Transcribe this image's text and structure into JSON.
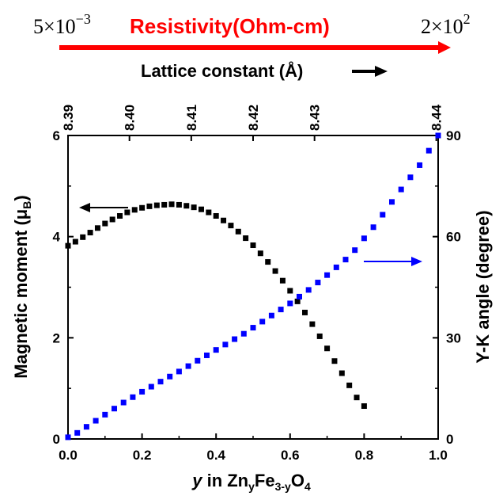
{
  "header": {
    "resistivity_label": "Resistivity(Ohm-cm)",
    "resistivity_min_mantissa": "5",
    "resistivity_min_times": "×",
    "resistivity_min_base": "10",
    "resistivity_min_exp": "−3",
    "resistivity_max_mantissa": "2",
    "resistivity_max_times": "×",
    "resistivity_max_base": "10",
    "resistivity_max_exp": "2",
    "resistivity_arrow_color": "#ff0000"
  },
  "chart_data": {
    "type": "scatter",
    "xlim": [
      0.0,
      1.0
    ],
    "x_ticks": [
      "0.0",
      "0.2",
      "0.4",
      "0.6",
      "0.8",
      "1.0"
    ],
    "x_tick_values": [
      0.0,
      0.2,
      0.4,
      0.6,
      0.8,
      1.0
    ],
    "xlabel_italic": "y",
    "xlabel_rest": " in Zn",
    "xlabel_sub1": "y",
    "xlabel_mid": "Fe",
    "xlabel_sub2": "3-y",
    "xlabel_end": "O",
    "xlabel_sub3": "4",
    "y_left_lim": [
      0,
      6
    ],
    "y_left_ticks": [
      "0",
      "2",
      "4",
      "6"
    ],
    "y_left_tick_values": [
      0,
      2,
      4,
      6
    ],
    "ylabel_left_main": "Magnetic moment (μ",
    "ylabel_left_sub": "B",
    "ylabel_left_end": ")",
    "y_right_lim": [
      0,
      90
    ],
    "y_right_ticks": [
      "0",
      "30",
      "60",
      "90"
    ],
    "y_right_tick_values": [
      0,
      30,
      60,
      90
    ],
    "ylabel_right": "Y-K angle (degree)",
    "top_axis_label": "Lattice constant (Å)",
    "top_axis_ticks": [
      "8.39",
      "8.40",
      "8.41",
      "8.42",
      "8.43",
      "8.44"
    ],
    "top_axis_tick_positions_y": [
      0.0,
      0.166,
      0.333,
      0.5,
      0.666,
      0.995
    ],
    "series": [
      {
        "color": "#000000",
        "axis": "left",
        "x": [
          0.0,
          0.02,
          0.04,
          0.06,
          0.08,
          0.1,
          0.12,
          0.14,
          0.16,
          0.18,
          0.2,
          0.22,
          0.24,
          0.26,
          0.28,
          0.3,
          0.32,
          0.34,
          0.36,
          0.38,
          0.4,
          0.42,
          0.44,
          0.46,
          0.48,
          0.5,
          0.52,
          0.54,
          0.56,
          0.58,
          0.6,
          0.62,
          0.64,
          0.66,
          0.68,
          0.7,
          0.72,
          0.74,
          0.76,
          0.78,
          0.8
        ],
        "values": [
          3.82,
          3.9,
          3.99,
          4.08,
          4.17,
          4.26,
          4.34,
          4.41,
          4.48,
          4.53,
          4.57,
          4.6,
          4.62,
          4.63,
          4.64,
          4.63,
          4.61,
          4.58,
          4.54,
          4.48,
          4.41,
          4.32,
          4.22,
          4.1,
          3.97,
          3.83,
          3.67,
          3.5,
          3.32,
          3.13,
          2.93,
          2.72,
          2.5,
          2.27,
          2.03,
          1.79,
          1.54,
          1.3,
          1.06,
          0.82,
          0.65
        ]
      },
      {
        "color": "#0000ff",
        "axis": "right",
        "x": [
          0.0,
          0.025,
          0.05,
          0.075,
          0.1,
          0.125,
          0.15,
          0.175,
          0.2,
          0.225,
          0.25,
          0.275,
          0.3,
          0.325,
          0.35,
          0.375,
          0.4,
          0.425,
          0.45,
          0.475,
          0.5,
          0.525,
          0.55,
          0.575,
          0.6,
          0.625,
          0.65,
          0.675,
          0.7,
          0.725,
          0.75,
          0.775,
          0.8,
          0.825,
          0.85,
          0.875,
          0.9,
          0.925,
          0.95,
          0.975,
          1.0
        ],
        "values": [
          0.5,
          1.8,
          3.6,
          5.4,
          7.2,
          9.0,
          10.8,
          12.4,
          14.0,
          15.5,
          17.0,
          18.5,
          20.0,
          21.6,
          23.2,
          24.8,
          26.4,
          28.0,
          29.6,
          31.2,
          33.0,
          34.8,
          36.6,
          38.4,
          40.2,
          42.2,
          44.2,
          46.4,
          48.6,
          50.9,
          53.2,
          56.0,
          59.5,
          62.8,
          66.5,
          70.3,
          74.0,
          77.6,
          81.2,
          85.5,
          90.0
        ]
      }
    ]
  }
}
